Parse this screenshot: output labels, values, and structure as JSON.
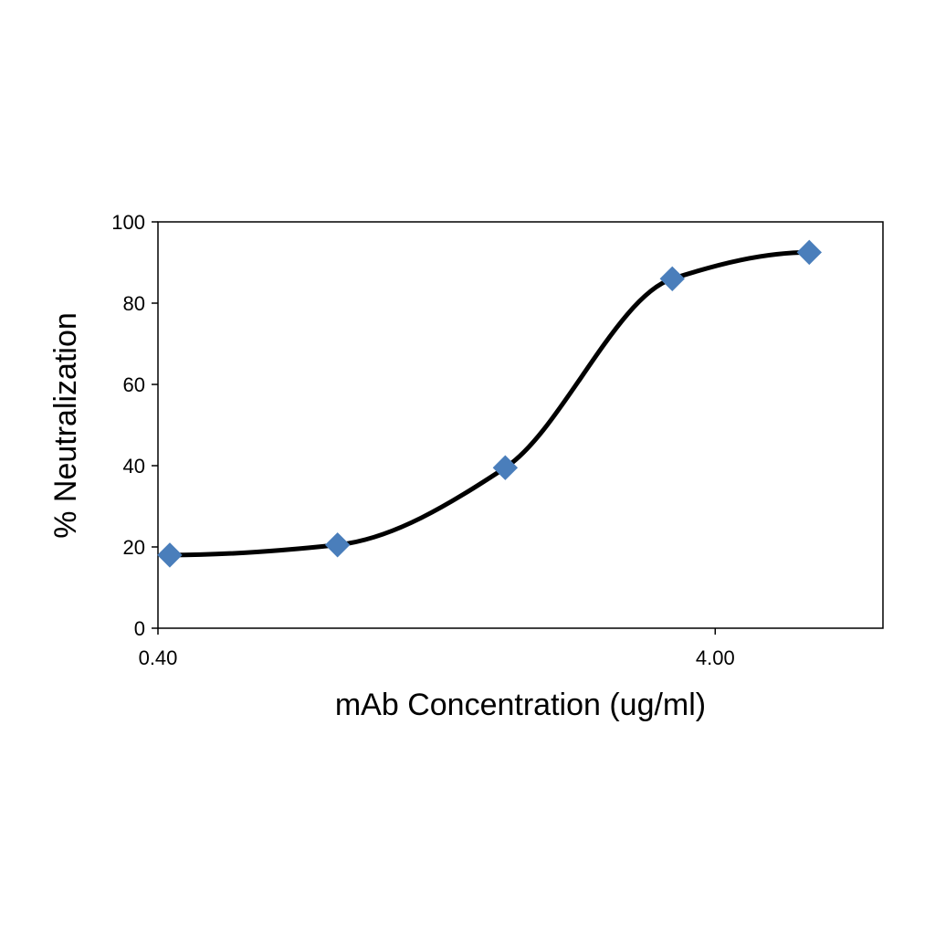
{
  "chart_data": {
    "type": "scatter",
    "title": "",
    "xlabel": "mAb Concentration (ug/ml)",
    "ylabel": "% Neutralization",
    "x_scale": "log",
    "xlim": [
      0.4,
      8.0
    ],
    "ylim": [
      0,
      100
    ],
    "x_ticks": [
      0.4,
      4.0
    ],
    "x_tick_labels": [
      "0.40",
      "4.00"
    ],
    "y_ticks": [
      0,
      20,
      40,
      60,
      80,
      100
    ],
    "y_tick_labels": [
      "0",
      "20",
      "40",
      "60",
      "80",
      "100"
    ],
    "grid": false,
    "series": [
      {
        "x": [
          0.42,
          0.84,
          1.68,
          3.35,
          5.9
        ],
        "y": [
          18,
          20.5,
          39.5,
          86,
          92.5
        ],
        "color": "#4a7ebb",
        "marker": "diamond",
        "fit_curve": true,
        "curve_color": "#000000"
      }
    ]
  }
}
